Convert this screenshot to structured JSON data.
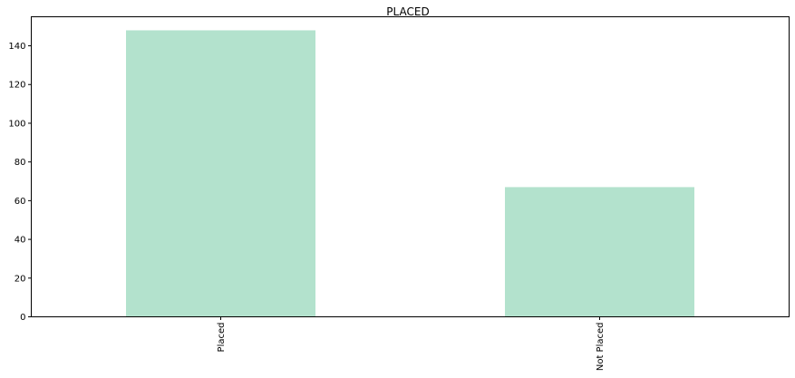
{
  "chart_data": {
    "type": "bar",
    "title": "PLACED",
    "xlabel": "",
    "ylabel": "",
    "categories": [
      "Placed",
      "Not Placed"
    ],
    "values": [
      148,
      67
    ],
    "ylim": [
      0,
      155
    ],
    "yticks": [
      0,
      20,
      40,
      60,
      80,
      100,
      120,
      140
    ],
    "bar_color": "#b3e2cd",
    "grid": false,
    "legend": "none"
  }
}
